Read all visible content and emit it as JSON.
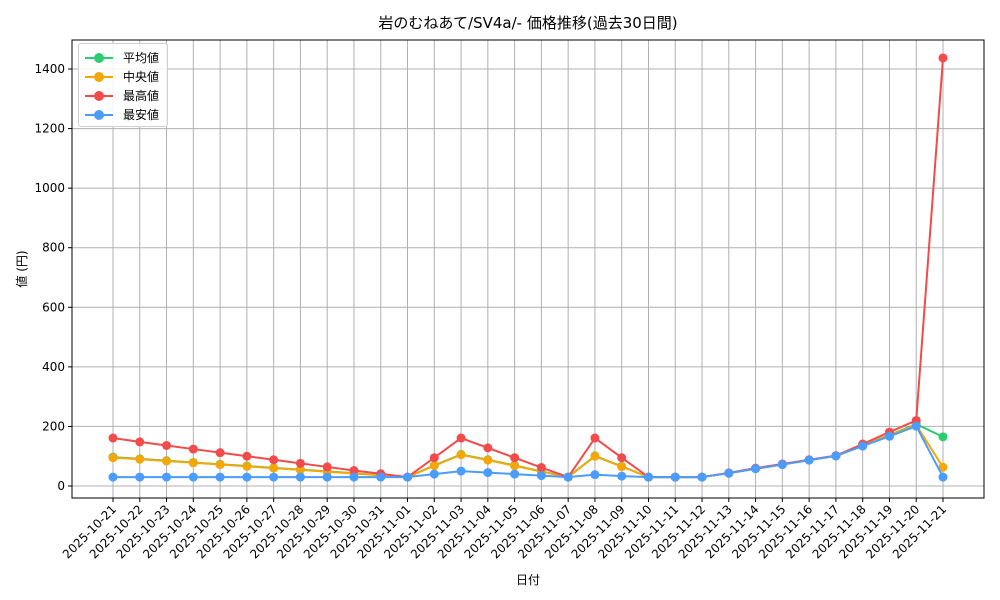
{
  "chart_data": {
    "type": "line",
    "title": "岩のむねあて/SV4a/- 価格推移(過去30日間)",
    "xlabel": "日付",
    "ylabel": "値 (円)",
    "ylim": [
      -45,
      1505
    ],
    "yticks": [
      0,
      200,
      400,
      600,
      800,
      1000,
      1200,
      1400
    ],
    "grid": true,
    "legend_position": "upper left",
    "categories": [
      "2025-10-21",
      "2025-10-22",
      "2025-10-23",
      "2025-10-24",
      "2025-10-25",
      "2025-10-26",
      "2025-10-27",
      "2025-10-28",
      "2025-10-29",
      "2025-10-30",
      "2025-10-31",
      "2025-11-01",
      "2025-11-02",
      "2025-11-03",
      "2025-11-04",
      "2025-11-05",
      "2025-11-06",
      "2025-11-07",
      "2025-11-08",
      "2025-11-09",
      "2025-11-10",
      "2025-11-11",
      "2025-11-12",
      "2025-11-13",
      "2025-11-14",
      "2025-11-15",
      "2025-11-16",
      "2025-11-17",
      "2025-11-18",
      "2025-11-19",
      "2025-11-20",
      "2025-11-21"
    ],
    "series": [
      {
        "name": "平均値",
        "color": "#2ecc71",
        "values": [
          97,
          91,
          85,
          79,
          73,
          67,
          61,
          55,
          49,
          43,
          36,
          30,
          69,
          106,
          88,
          69,
          49,
          30,
          101,
          66,
          30,
          30,
          30,
          43,
          58,
          72,
          87,
          101,
          137,
          171,
          208,
          165
        ]
      },
      {
        "name": "中央値",
        "color": "#f5a70a",
        "values": [
          95,
          90,
          84,
          78,
          72,
          66,
          60,
          54,
          48,
          42,
          36,
          30,
          68,
          105,
          87,
          68,
          48,
          30,
          100,
          65,
          30,
          30,
          30,
          43,
          58,
          72,
          87,
          101,
          136,
          170,
          205,
          63
        ]
      },
      {
        "name": "最高値",
        "color": "#f24b4b",
        "values": [
          161,
          148,
          136,
          124,
          112,
          100,
          88,
          76,
          64,
          52,
          41,
          30,
          95,
          161,
          128,
          95,
          62,
          30,
          161,
          95,
          30,
          30,
          30,
          44,
          60,
          74,
          88,
          102,
          141,
          181,
          220,
          1437
        ]
      },
      {
        "name": "最安値",
        "color": "#4a9cff",
        "values": [
          30,
          30,
          30,
          30,
          30,
          30,
          30,
          30,
          30,
          30,
          30,
          30,
          40,
          50,
          45,
          40,
          35,
          30,
          38,
          33,
          30,
          30,
          30,
          43,
          58,
          72,
          87,
          101,
          134,
          167,
          201,
          30
        ]
      }
    ]
  }
}
